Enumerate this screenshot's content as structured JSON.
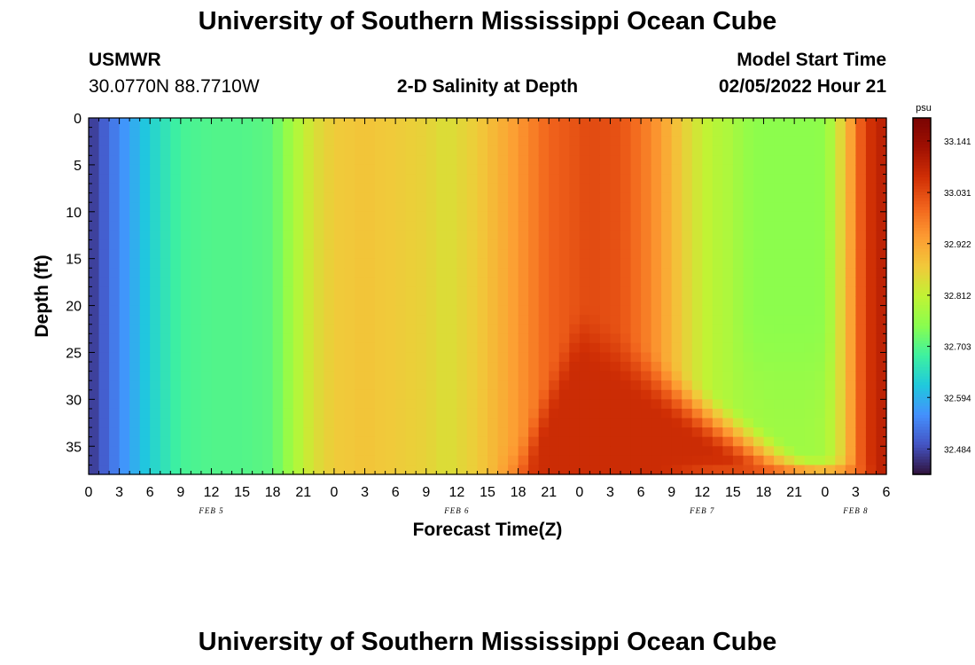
{
  "page": {
    "title": "University of Southern Mississippi Ocean Cube",
    "station": "USMWR",
    "coords": "30.0770N  88.7710W",
    "subtitle": "2-D Salinity at Depth",
    "model_start_label": "Model Start Time",
    "model_start_value": "02/05/2022 Hour 21",
    "footer_title": "University of Southern Mississippi Ocean Cube"
  },
  "chart_data": {
    "type": "heatmap",
    "xlabel": "Forecast Time(Z)",
    "ylabel": "Depth (ft)",
    "x_tick_labels": [
      "0",
      "3",
      "6",
      "9",
      "12",
      "15",
      "18",
      "21",
      "0",
      "3",
      "6",
      "9",
      "12",
      "15",
      "18",
      "21",
      "0",
      "3",
      "6",
      "9",
      "12",
      "15",
      "18",
      "21",
      "0",
      "3",
      "6"
    ],
    "x_range_hours": [
      0,
      78
    ],
    "day_labels": [
      {
        "label": "FEB 5",
        "hour": 12
      },
      {
        "label": "FEB 6",
        "hour": 36
      },
      {
        "label": "FEB 7",
        "hour": 60
      },
      {
        "label": "FEB 8",
        "hour": 75
      }
    ],
    "y_ticks": [
      0,
      5,
      10,
      15,
      20,
      25,
      30,
      35
    ],
    "y_range": [
      0,
      38
    ],
    "y_inverted": true,
    "colorbar": {
      "unit": "psu",
      "min": 32.43,
      "max": 33.19,
      "labels": [
        "33.141",
        "33.031",
        "32.922",
        "32.812",
        "32.703",
        "32.594",
        "32.484"
      ],
      "colors": [
        "#30123b",
        "#4454c4",
        "#4490fe",
        "#1fc9dd",
        "#3ef1a0",
        "#89fe4e",
        "#c1f334",
        "#f1c93a",
        "#fd9b32",
        "#f1631c",
        "#d02f05",
        "#a01002",
        "#7a0403"
      ]
    },
    "surface_salinity_by_hour": [
      [
        0,
        32.46
      ],
      [
        3,
        32.55
      ],
      [
        6,
        32.63
      ],
      [
        9,
        32.69
      ],
      [
        12,
        32.7
      ],
      [
        15,
        32.7
      ],
      [
        18,
        32.71
      ],
      [
        20,
        32.78
      ],
      [
        22,
        32.84
      ],
      [
        24,
        32.87
      ],
      [
        27,
        32.88
      ],
      [
        30,
        32.87
      ],
      [
        33,
        32.86
      ],
      [
        35,
        32.84
      ],
      [
        38,
        32.87
      ],
      [
        41,
        32.92
      ],
      [
        45,
        33.0
      ],
      [
        49,
        33.03
      ],
      [
        52,
        33.02
      ],
      [
        55,
        32.96
      ],
      [
        57,
        32.9
      ],
      [
        59,
        32.84
      ],
      [
        61,
        32.8
      ],
      [
        64,
        32.78
      ],
      [
        67,
        32.77
      ],
      [
        70,
        32.77
      ],
      [
        72,
        32.78
      ],
      [
        73,
        32.82
      ],
      [
        74,
        32.88
      ],
      [
        75,
        32.97
      ],
      [
        76,
        33.05
      ],
      [
        78,
        33.1
      ]
    ],
    "features": {
      "deep_high_salinity_wedge_center_hours": [
        43,
        63
      ],
      "low_salinity_pool_depth_ft": [
        0,
        37
      ],
      "low_salinity_pool_hours": [
        63,
        73
      ],
      "low_salinity_pool_min": 32.75
    }
  }
}
